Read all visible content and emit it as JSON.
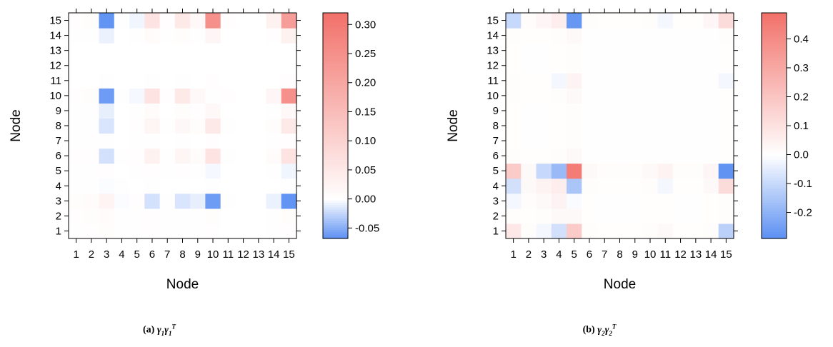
{
  "chart_data": [
    {
      "type": "heatmap",
      "xlabel": "Node",
      "ylabel": "Node",
      "x_ticks": [
        "1",
        "2",
        "3",
        "4",
        "5",
        "6",
        "7",
        "8",
        "9",
        "10",
        "11",
        "12",
        "13",
        "14",
        "15"
      ],
      "y_ticks": [
        "1",
        "2",
        "3",
        "4",
        "5",
        "6",
        "7",
        "8",
        "9",
        "10",
        "11",
        "12",
        "13",
        "14",
        "15"
      ],
      "color_range": [
        -0.068,
        0.32
      ],
      "colorbar_ticks": [
        "-0.05",
        "0.00",
        "0.05",
        "0.10",
        "0.15",
        "0.20",
        "0.25",
        "0.30"
      ],
      "colorbar_tick_values": [
        -0.05,
        0.0,
        0.05,
        0.1,
        0.15,
        0.2,
        0.25,
        0.3
      ],
      "colors": {
        "negative": "#5b8ff2",
        "zero": "#ffffff",
        "positive": "#f2716a"
      },
      "caption_label": "(a)",
      "caption_formula": "γ1γ1T",
      "z": [
        [
          0.002,
          0.004,
          0.006,
          0.002,
          0.003,
          0.004,
          0.002,
          0.003,
          0.002,
          0.004,
          0.001,
          0.001,
          0.001,
          0.002,
          0.004
        ],
        [
          0.004,
          0.006,
          0.008,
          0.002,
          0.003,
          0.005,
          0.002,
          0.003,
          0.002,
          0.006,
          0.001,
          0.001,
          0.001,
          0.002,
          0.006
        ],
        [
          0.006,
          0.008,
          0.025,
          -0.002,
          0.004,
          -0.018,
          0.003,
          -0.016,
          -0.01,
          -0.06,
          0.003,
          0.001,
          0.001,
          -0.008,
          -0.065
        ],
        [
          0.002,
          0.002,
          -0.002,
          0.002,
          0.001,
          0.002,
          0.001,
          0.001,
          0.001,
          0.002,
          0.001,
          0.001,
          0.001,
          0.001,
          0.002
        ],
        [
          0.003,
          0.003,
          0.004,
          0.001,
          0.003,
          0.005,
          0.002,
          0.004,
          0.002,
          -0.004,
          0.001,
          0.001,
          0.001,
          0.002,
          -0.006
        ],
        [
          0.004,
          0.005,
          -0.018,
          0.002,
          0.005,
          0.03,
          0.003,
          0.022,
          0.008,
          0.06,
          0.002,
          0.001,
          0.001,
          0.008,
          0.06
        ],
        [
          0.002,
          0.002,
          0.003,
          0.001,
          0.002,
          0.003,
          0.001,
          0.002,
          0.001,
          0.005,
          0.001,
          0.001,
          0.001,
          0.002,
          0.005
        ],
        [
          0.003,
          0.003,
          -0.016,
          0.001,
          0.004,
          0.022,
          0.002,
          0.018,
          0.006,
          0.05,
          0.002,
          0.001,
          0.001,
          0.006,
          0.05
        ],
        [
          0.002,
          0.002,
          -0.01,
          0.001,
          0.002,
          0.008,
          0.001,
          0.006,
          0.004,
          0.015,
          0.001,
          0.001,
          0.001,
          0.003,
          0.015
        ],
        [
          0.004,
          0.006,
          -0.06,
          0.002,
          -0.004,
          0.06,
          0.005,
          0.05,
          0.015,
          0.003,
          0.004,
          0.001,
          0.001,
          0.02,
          0.25
        ],
        [
          0.001,
          0.001,
          0.003,
          0.001,
          0.001,
          0.002,
          0.001,
          0.002,
          0.001,
          0.004,
          0.001,
          0.001,
          0.001,
          0.001,
          0.004
        ],
        [
          0.001,
          0.001,
          0.001,
          0.001,
          0.001,
          0.001,
          0.001,
          0.001,
          0.001,
          0.001,
          0.001,
          0.001,
          0.001,
          0.001,
          0.001
        ],
        [
          0.001,
          0.001,
          0.001,
          0.001,
          0.001,
          0.001,
          0.001,
          0.001,
          0.001,
          0.001,
          0.001,
          0.001,
          0.001,
          0.001,
          0.001
        ],
        [
          0.002,
          0.002,
          -0.008,
          0.001,
          0.002,
          0.008,
          0.002,
          0.006,
          0.003,
          0.02,
          0.001,
          0.001,
          0.001,
          0.004,
          0.03
        ],
        [
          0.004,
          0.006,
          -0.065,
          0.002,
          -0.006,
          0.06,
          0.005,
          0.05,
          0.015,
          0.25,
          0.004,
          0.001,
          0.001,
          0.03,
          0.22
        ]
      ]
    },
    {
      "type": "heatmap",
      "xlabel": "Node",
      "ylabel": "Node",
      "x_ticks": [
        "1",
        "2",
        "3",
        "4",
        "5",
        "6",
        "7",
        "8",
        "9",
        "10",
        "11",
        "12",
        "13",
        "14",
        "15"
      ],
      "y_ticks": [
        "1",
        "2",
        "3",
        "4",
        "5",
        "6",
        "7",
        "8",
        "9",
        "10",
        "11",
        "12",
        "13",
        "14",
        "15"
      ],
      "color_range": [
        -0.29,
        0.49
      ],
      "colorbar_ticks": [
        "-0.2",
        "-0.1",
        "0.0",
        "0.1",
        "0.2",
        "0.3",
        "0.4"
      ],
      "colorbar_tick_values": [
        -0.2,
        -0.1,
        0.0,
        0.1,
        0.2,
        0.3,
        0.4
      ],
      "colors": {
        "negative": "#5b8ff2",
        "zero": "#ffffff",
        "positive": "#f2716a"
      },
      "caption_label": "(b)",
      "caption_formula": "γ2γ2T",
      "z": [
        [
          0.08,
          0.01,
          -0.02,
          -0.08,
          0.18,
          0.01,
          0.005,
          0.005,
          0.005,
          0.01,
          0.02,
          0.005,
          0.005,
          0.01,
          -0.12
        ],
        [
          0.01,
          0.005,
          0.01,
          0.02,
          0.02,
          0.005,
          0.002,
          0.002,
          0.002,
          0.005,
          0.005,
          0.002,
          0.002,
          0.005,
          0.01
        ],
        [
          -0.02,
          0.01,
          0.02,
          0.04,
          -0.01,
          0.005,
          0.002,
          0.002,
          0.002,
          0.005,
          0.005,
          0.002,
          0.002,
          0.005,
          0.01
        ],
        [
          -0.08,
          0.02,
          0.04,
          0.06,
          -0.15,
          0.01,
          0.005,
          0.005,
          0.005,
          0.01,
          -0.02,
          0.005,
          0.005,
          0.02,
          0.12
        ],
        [
          0.18,
          0.02,
          -0.1,
          -0.18,
          0.45,
          0.02,
          0.01,
          0.01,
          0.01,
          0.02,
          0.04,
          0.01,
          0.01,
          0.03,
          -0.28
        ],
        [
          0.01,
          0.005,
          0.005,
          0.01,
          0.02,
          0.002,
          0.002,
          0.002,
          0.002,
          0.002,
          0.002,
          0.002,
          0.002,
          0.002,
          0.005
        ],
        [
          0.005,
          0.002,
          0.002,
          0.005,
          0.01,
          0.002,
          0.002,
          0.002,
          0.002,
          0.002,
          0.002,
          0.002,
          0.002,
          0.002,
          0.005
        ],
        [
          0.005,
          0.002,
          0.002,
          0.005,
          0.01,
          0.002,
          0.002,
          0.002,
          0.002,
          0.002,
          0.002,
          0.002,
          0.002,
          0.002,
          0.005
        ],
        [
          0.005,
          0.002,
          0.002,
          0.005,
          0.01,
          0.002,
          0.002,
          0.002,
          0.002,
          0.002,
          0.002,
          0.002,
          0.002,
          0.002,
          0.005
        ],
        [
          0.01,
          0.005,
          0.005,
          0.01,
          0.02,
          0.002,
          0.002,
          0.002,
          0.002,
          0.002,
          0.002,
          0.002,
          0.002,
          0.002,
          0.005
        ],
        [
          0.01,
          0.005,
          0.005,
          -0.02,
          0.04,
          0.002,
          0.002,
          0.002,
          0.002,
          0.002,
          0.002,
          0.002,
          0.002,
          0.002,
          -0.02
        ],
        [
          0.005,
          0.002,
          0.002,
          0.005,
          0.01,
          0.002,
          0.002,
          0.002,
          0.002,
          0.002,
          0.002,
          0.002,
          0.002,
          0.002,
          0.005
        ],
        [
          0.005,
          0.002,
          0.002,
          0.005,
          0.01,
          0.002,
          0.002,
          0.002,
          0.002,
          0.002,
          0.002,
          0.002,
          0.002,
          0.002,
          0.005
        ],
        [
          0.01,
          0.005,
          0.005,
          0.01,
          0.02,
          0.002,
          0.002,
          0.002,
          0.002,
          0.002,
          0.002,
          0.002,
          0.002,
          0.002,
          0.01
        ],
        [
          -0.1,
          0.01,
          0.03,
          0.06,
          -0.27,
          0.01,
          0.005,
          0.005,
          0.005,
          0.01,
          -0.02,
          0.005,
          0.005,
          0.03,
          0.12
        ]
      ]
    }
  ]
}
